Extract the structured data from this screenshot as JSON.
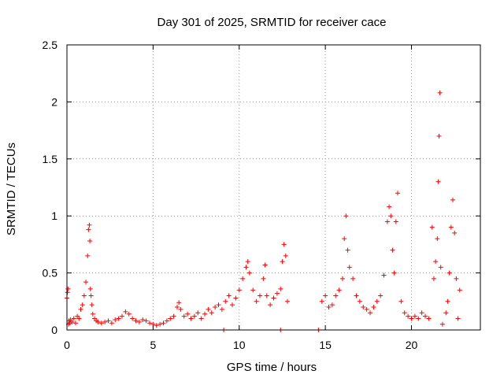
{
  "chart_data": {
    "type": "scatter",
    "title": "Day 301 of 2025, SRMTID for receiver cace",
    "xlabel": "GPS time / hours",
    "ylabel": "SRMTID / TECUs",
    "xlim": [
      0,
      24
    ],
    "ylim": [
      0,
      2.5
    ],
    "xticks": [
      0,
      5,
      10,
      15,
      20
    ],
    "yticks": [
      0,
      0.5,
      1,
      1.5,
      2,
      2.5
    ],
    "xtick_labels": [
      "0",
      "5",
      "10",
      "15",
      "20"
    ],
    "ytick_labels": [
      "0",
      "0.5",
      "1",
      "1.5",
      "2",
      "2.5"
    ],
    "grid": true,
    "marker": "+",
    "color": "#ff0000",
    "series": [
      {
        "name": "SRMTID",
        "x": [
          0.0,
          0.03,
          0.06,
          0.09,
          0.12,
          0.15,
          0.2,
          0.3,
          0.4,
          0.5,
          0.6,
          0.7,
          0.8,
          0.9,
          1.0,
          1.1,
          1.2,
          1.25,
          1.3,
          1.33,
          1.36,
          1.4,
          1.45,
          1.5,
          1.6,
          1.7,
          1.8,
          2.0,
          2.2,
          2.4,
          2.6,
          2.8,
          3.0,
          3.2,
          3.4,
          3.6,
          3.8,
          4.0,
          4.2,
          4.4,
          4.6,
          4.8,
          5.0,
          5.2,
          5.4,
          5.6,
          5.8,
          6.0,
          6.2,
          6.4,
          6.5,
          6.6,
          6.8,
          7.0,
          7.2,
          7.4,
          7.6,
          7.8,
          8.0,
          8.2,
          8.4,
          8.6,
          8.8,
          9.0,
          9.2,
          9.4,
          9.6,
          9.8,
          10.0,
          10.2,
          10.4,
          10.5,
          10.6,
          10.8,
          11.0,
          11.2,
          11.4,
          11.5,
          11.6,
          11.8,
          12.0,
          12.2,
          12.4,
          12.5,
          12.6,
          12.7,
          12.8,
          9.1,
          12.4,
          14.6,
          14.8,
          15.0,
          15.2,
          15.4,
          15.6,
          15.8,
          16.0,
          16.1,
          16.2,
          16.3,
          16.4,
          16.6,
          16.8,
          17.0,
          17.2,
          17.4,
          17.6,
          17.8,
          18.0,
          18.2,
          18.4,
          18.6,
          18.7,
          18.8,
          18.9,
          19.0,
          19.1,
          19.2,
          19.4,
          19.6,
          19.8,
          20.0,
          20.2,
          20.4,
          20.6,
          20.8,
          21.0,
          21.2,
          21.3,
          21.4,
          21.5,
          21.55,
          21.6,
          21.65,
          21.7,
          21.8,
          22.0,
          22.1,
          22.2,
          22.3,
          22.4,
          22.5,
          22.6,
          22.7,
          22.8
        ],
        "y": [
          0.28,
          0.33,
          0.36,
          0.05,
          0.08,
          0.06,
          0.09,
          0.07,
          0.1,
          0.06,
          0.12,
          0.1,
          0.18,
          0.22,
          0.3,
          0.42,
          0.65,
          0.88,
          0.92,
          0.78,
          0.36,
          0.3,
          0.22,
          0.14,
          0.1,
          0.08,
          0.07,
          0.06,
          0.07,
          0.08,
          0.06,
          0.09,
          0.1,
          0.12,
          0.16,
          0.14,
          0.1,
          0.08,
          0.07,
          0.09,
          0.08,
          0.06,
          0.05,
          0.04,
          0.05,
          0.06,
          0.08,
          0.1,
          0.12,
          0.2,
          0.24,
          0.18,
          0.12,
          0.14,
          0.1,
          0.12,
          0.15,
          0.1,
          0.14,
          0.18,
          0.15,
          0.2,
          0.22,
          0.18,
          0.25,
          0.3,
          0.22,
          0.28,
          0.35,
          0.45,
          0.55,
          0.6,
          0.5,
          0.35,
          0.25,
          0.3,
          0.45,
          0.57,
          0.3,
          0.22,
          0.28,
          0.32,
          0.36,
          0.6,
          0.75,
          0.65,
          0.25,
          0.0,
          0.0,
          0.0,
          0.25,
          0.3,
          0.2,
          0.22,
          0.3,
          0.35,
          0.45,
          0.8,
          1.0,
          0.7,
          0.55,
          0.45,
          0.3,
          0.25,
          0.2,
          0.18,
          0.15,
          0.2,
          0.25,
          0.3,
          0.48,
          0.95,
          1.08,
          1.0,
          0.7,
          0.5,
          0.95,
          1.2,
          0.25,
          0.15,
          0.12,
          0.1,
          0.12,
          0.1,
          0.15,
          0.12,
          0.1,
          0.9,
          0.45,
          0.6,
          0.8,
          1.3,
          1.7,
          2.08,
          0.55,
          0.05,
          0.15,
          0.25,
          0.5,
          0.9,
          1.14,
          0.85,
          0.45,
          0.1,
          0.35
        ]
      }
    ]
  }
}
